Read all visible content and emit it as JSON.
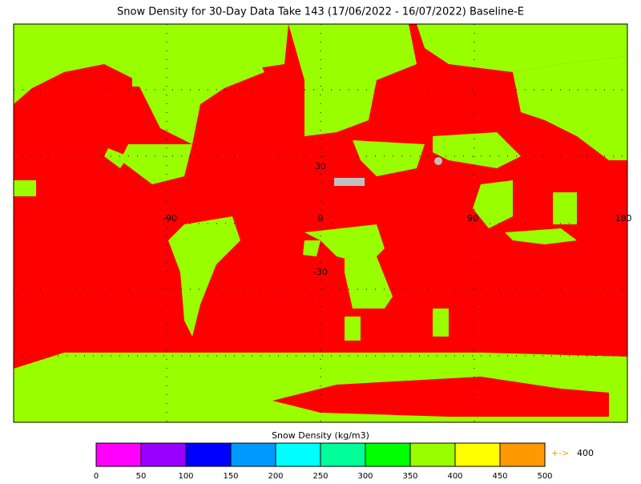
{
  "title": "Snow Density for 30-Day Data Take 143 (17/06/2022 - 16/07/2022) Baseline-E",
  "map": {
    "lat_labels": [
      "30",
      "-30"
    ],
    "lon_labels": [
      "-90",
      "0",
      "90",
      "180"
    ],
    "background_color": "#ff0000",
    "land_color": "#99ff00"
  },
  "colorbar": {
    "label": "Snow Density (kg/m3)",
    "ticks": [
      0,
      50,
      100,
      150,
      200,
      250,
      300,
      350,
      400,
      450,
      500
    ],
    "colors": [
      "#ff00ff",
      "#9900ff",
      "#0000ff",
      "#0099ff",
      "#00ffff",
      "#00ff99",
      "#00ff00",
      "#99ff00",
      "#ffff00",
      "#ff9900"
    ],
    "overflow_label": "+->",
    "overflow_value": 400,
    "overflow_color": "#ff9900"
  }
}
